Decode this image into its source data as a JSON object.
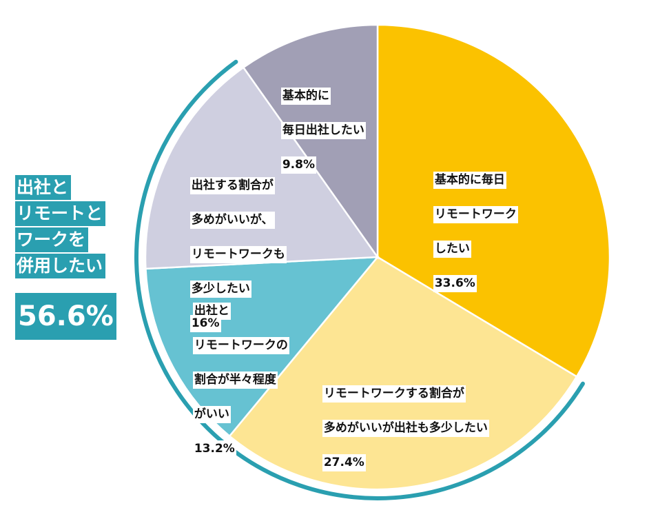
{
  "colors": {
    "accent": "#2a9fb0",
    "slice_colors": [
      "#fbc200",
      "#fde593",
      "#66c2d2",
      "#cfcfe0",
      "#a19fb5"
    ]
  },
  "chart_data": {
    "type": "pie",
    "start": "12 o'clock",
    "direction": "clockwise",
    "slices": [
      {
        "label": "基本的に毎日リモートワークしたい",
        "lines": [
          "基本的に毎日",
          "リモートワーク",
          "したい"
        ],
        "value": 33.6,
        "value_label": "33.6%"
      },
      {
        "label": "リモートワークする割合が多めがいいが出社も多少したい",
        "lines": [
          "リモートワークする割合が",
          "多めがいいが出社も多少したい"
        ],
        "value": 27.4,
        "value_label": "27.4%"
      },
      {
        "label": "出社とリモートワークの割合が半々程度がいい",
        "lines": [
          "出社と",
          "リモートワークの",
          "割合が半々程度",
          "がいい"
        ],
        "value": 13.2,
        "value_label": "13.2%"
      },
      {
        "label": "出社する割合が多めがいいが、リモートワークも多少したい",
        "lines": [
          "出社する割合が",
          "多めがいいが、",
          "リモートワークも",
          "多少したい"
        ],
        "value": 16,
        "value_label": "16%"
      },
      {
        "label": "基本的に毎日出社したい",
        "lines": [
          "基本的に",
          "毎日出社したい"
        ],
        "value": 9.8,
        "value_label": "9.8%"
      }
    ],
    "group_annotation": {
      "lines": [
        "出社と",
        "リモートと",
        "ワークを",
        "併用したい"
      ],
      "value_label": "56.6%"
    }
  }
}
